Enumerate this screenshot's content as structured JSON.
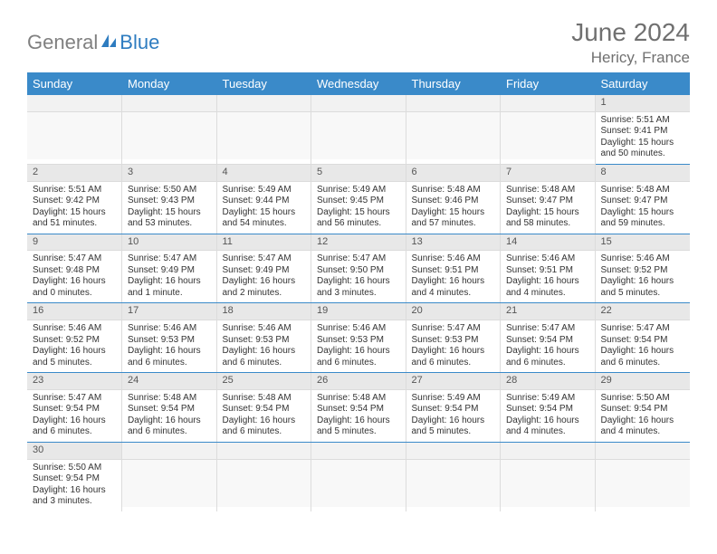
{
  "logo": {
    "part1": "General",
    "part2": "Blue"
  },
  "title": "June 2024",
  "location": "Hericy, France",
  "colors": {
    "header_bg": "#3a8ac9",
    "header_fg": "#ffffff",
    "daynum_bg": "#e8e8e8",
    "row_divider": "#3a8ac9",
    "logo_gray": "#808080",
    "logo_blue": "#2e7cc0",
    "title_color": "#707070"
  },
  "weekdays": [
    "Sunday",
    "Monday",
    "Tuesday",
    "Wednesday",
    "Thursday",
    "Friday",
    "Saturday"
  ],
  "weeks": [
    [
      null,
      null,
      null,
      null,
      null,
      null,
      {
        "n": "1",
        "sr": "Sunrise: 5:51 AM",
        "ss": "Sunset: 9:41 PM",
        "dl": "Daylight: 15 hours and 50 minutes."
      }
    ],
    [
      {
        "n": "2",
        "sr": "Sunrise: 5:51 AM",
        "ss": "Sunset: 9:42 PM",
        "dl": "Daylight: 15 hours and 51 minutes."
      },
      {
        "n": "3",
        "sr": "Sunrise: 5:50 AM",
        "ss": "Sunset: 9:43 PM",
        "dl": "Daylight: 15 hours and 53 minutes."
      },
      {
        "n": "4",
        "sr": "Sunrise: 5:49 AM",
        "ss": "Sunset: 9:44 PM",
        "dl": "Daylight: 15 hours and 54 minutes."
      },
      {
        "n": "5",
        "sr": "Sunrise: 5:49 AM",
        "ss": "Sunset: 9:45 PM",
        "dl": "Daylight: 15 hours and 56 minutes."
      },
      {
        "n": "6",
        "sr": "Sunrise: 5:48 AM",
        "ss": "Sunset: 9:46 PM",
        "dl": "Daylight: 15 hours and 57 minutes."
      },
      {
        "n": "7",
        "sr": "Sunrise: 5:48 AM",
        "ss": "Sunset: 9:47 PM",
        "dl": "Daylight: 15 hours and 58 minutes."
      },
      {
        "n": "8",
        "sr": "Sunrise: 5:48 AM",
        "ss": "Sunset: 9:47 PM",
        "dl": "Daylight: 15 hours and 59 minutes."
      }
    ],
    [
      {
        "n": "9",
        "sr": "Sunrise: 5:47 AM",
        "ss": "Sunset: 9:48 PM",
        "dl": "Daylight: 16 hours and 0 minutes."
      },
      {
        "n": "10",
        "sr": "Sunrise: 5:47 AM",
        "ss": "Sunset: 9:49 PM",
        "dl": "Daylight: 16 hours and 1 minute."
      },
      {
        "n": "11",
        "sr": "Sunrise: 5:47 AM",
        "ss": "Sunset: 9:49 PM",
        "dl": "Daylight: 16 hours and 2 minutes."
      },
      {
        "n": "12",
        "sr": "Sunrise: 5:47 AM",
        "ss": "Sunset: 9:50 PM",
        "dl": "Daylight: 16 hours and 3 minutes."
      },
      {
        "n": "13",
        "sr": "Sunrise: 5:46 AM",
        "ss": "Sunset: 9:51 PM",
        "dl": "Daylight: 16 hours and 4 minutes."
      },
      {
        "n": "14",
        "sr": "Sunrise: 5:46 AM",
        "ss": "Sunset: 9:51 PM",
        "dl": "Daylight: 16 hours and 4 minutes."
      },
      {
        "n": "15",
        "sr": "Sunrise: 5:46 AM",
        "ss": "Sunset: 9:52 PM",
        "dl": "Daylight: 16 hours and 5 minutes."
      }
    ],
    [
      {
        "n": "16",
        "sr": "Sunrise: 5:46 AM",
        "ss": "Sunset: 9:52 PM",
        "dl": "Daylight: 16 hours and 5 minutes."
      },
      {
        "n": "17",
        "sr": "Sunrise: 5:46 AM",
        "ss": "Sunset: 9:53 PM",
        "dl": "Daylight: 16 hours and 6 minutes."
      },
      {
        "n": "18",
        "sr": "Sunrise: 5:46 AM",
        "ss": "Sunset: 9:53 PM",
        "dl": "Daylight: 16 hours and 6 minutes."
      },
      {
        "n": "19",
        "sr": "Sunrise: 5:46 AM",
        "ss": "Sunset: 9:53 PM",
        "dl": "Daylight: 16 hours and 6 minutes."
      },
      {
        "n": "20",
        "sr": "Sunrise: 5:47 AM",
        "ss": "Sunset: 9:53 PM",
        "dl": "Daylight: 16 hours and 6 minutes."
      },
      {
        "n": "21",
        "sr": "Sunrise: 5:47 AM",
        "ss": "Sunset: 9:54 PM",
        "dl": "Daylight: 16 hours and 6 minutes."
      },
      {
        "n": "22",
        "sr": "Sunrise: 5:47 AM",
        "ss": "Sunset: 9:54 PM",
        "dl": "Daylight: 16 hours and 6 minutes."
      }
    ],
    [
      {
        "n": "23",
        "sr": "Sunrise: 5:47 AM",
        "ss": "Sunset: 9:54 PM",
        "dl": "Daylight: 16 hours and 6 minutes."
      },
      {
        "n": "24",
        "sr": "Sunrise: 5:48 AM",
        "ss": "Sunset: 9:54 PM",
        "dl": "Daylight: 16 hours and 6 minutes."
      },
      {
        "n": "25",
        "sr": "Sunrise: 5:48 AM",
        "ss": "Sunset: 9:54 PM",
        "dl": "Daylight: 16 hours and 6 minutes."
      },
      {
        "n": "26",
        "sr": "Sunrise: 5:48 AM",
        "ss": "Sunset: 9:54 PM",
        "dl": "Daylight: 16 hours and 5 minutes."
      },
      {
        "n": "27",
        "sr": "Sunrise: 5:49 AM",
        "ss": "Sunset: 9:54 PM",
        "dl": "Daylight: 16 hours and 5 minutes."
      },
      {
        "n": "28",
        "sr": "Sunrise: 5:49 AM",
        "ss": "Sunset: 9:54 PM",
        "dl": "Daylight: 16 hours and 4 minutes."
      },
      {
        "n": "29",
        "sr": "Sunrise: 5:50 AM",
        "ss": "Sunset: 9:54 PM",
        "dl": "Daylight: 16 hours and 4 minutes."
      }
    ],
    [
      {
        "n": "30",
        "sr": "Sunrise: 5:50 AM",
        "ss": "Sunset: 9:54 PM",
        "dl": "Daylight: 16 hours and 3 minutes."
      },
      null,
      null,
      null,
      null,
      null,
      null
    ]
  ]
}
